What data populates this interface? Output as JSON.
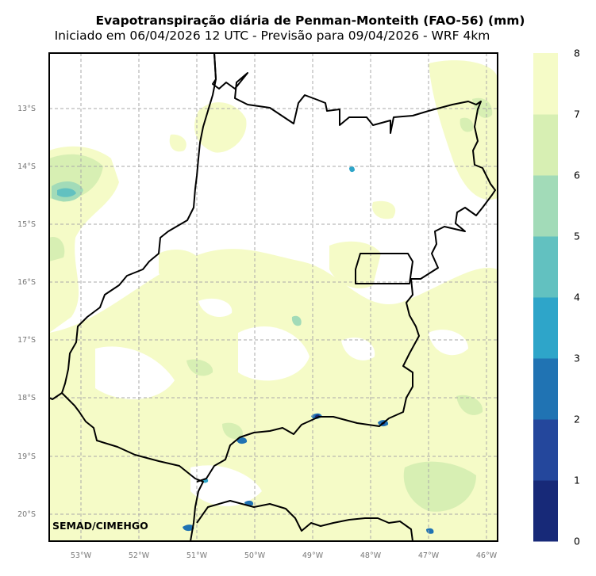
{
  "map": {
    "title": "Evapotranspiração diária de Penman-Monteith (FAO-56) (mm)",
    "subtitle": "Iniciado em 06/04/2026 12 UTC - Previsão para 09/04/2026 - WRF 4km",
    "credit": "SEMAD/CIMEHGO",
    "lat_labels": [
      "13°S",
      "14°S",
      "15°S",
      "16°S",
      "17°S",
      "18°S",
      "19°S",
      "20°S"
    ],
    "lon_labels": [
      "53°W",
      "52°W",
      "51°W",
      "50°W",
      "49°W",
      "48°W",
      "47°W",
      "46°W"
    ],
    "gridlines": true
  },
  "colorbar": {
    "labels": [
      "0",
      "1",
      "2",
      "3",
      "4",
      "5",
      "6",
      "7",
      "8"
    ],
    "colors": [
      "#172978",
      "#24479c",
      "#2073b3",
      "#2ea5c9",
      "#62c1c0",
      "#a2dbb8",
      "#d7efb3",
      "#f5fbc7"
    ]
  }
}
